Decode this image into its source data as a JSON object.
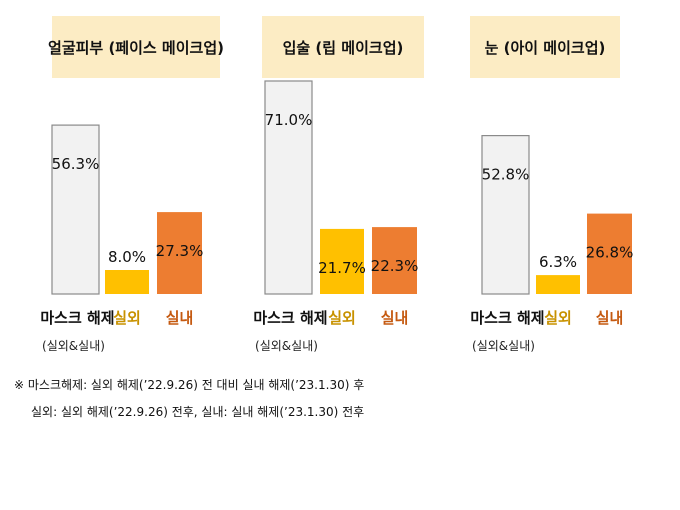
{
  "chart_data": [
    {
      "type": "bar",
      "title": "얼굴피부 (페이스 메이크업)",
      "categories": [
        "마스크 해제",
        "실외",
        "실내"
      ],
      "sublabels": [
        "(실외&실내)",
        "",
        ""
      ],
      "values": [
        56.3,
        8.0,
        27.3
      ],
      "data_labels": [
        "56.3%",
        "8.0%",
        "27.3%"
      ]
    },
    {
      "type": "bar",
      "title": "입술 (립 메이크업)",
      "categories": [
        "마스크 해제",
        "실외",
        "실내"
      ],
      "sublabels": [
        "(실외&실내)",
        "",
        ""
      ],
      "values": [
        71.0,
        21.7,
        22.3
      ],
      "data_labels": [
        "71.0%",
        "21.7%",
        "22.3%"
      ]
    },
    {
      "type": "bar",
      "title": "눈 (아이 메이크업)",
      "categories": [
        "마스크 해제",
        "실외",
        "실내"
      ],
      "sublabels": [
        "(실외&실내)",
        "",
        ""
      ],
      "values": [
        52.8,
        6.3,
        26.8
      ],
      "data_labels": [
        "52.8%",
        "6.3%",
        "26.8%"
      ]
    }
  ],
  "colors": {
    "title_bg": "#fcecc4",
    "mask_bar": "#f2f2f2",
    "mask_border": "#8a8a8a",
    "outdoor_bar": "#ffc000",
    "indoor_bar": "#ed7d31",
    "outdoor_label": "#c89200",
    "indoor_label": "#c55a11"
  },
  "notes": [
    "※ 마스크해제: 실외 해제(’22.9.26) 전 대비 실내 해제(’23.1.30) 후",
    "실외: 실외 해제(’22.9.26) 전후, 실내: 실내 해제(’23.1.30) 전후"
  ]
}
